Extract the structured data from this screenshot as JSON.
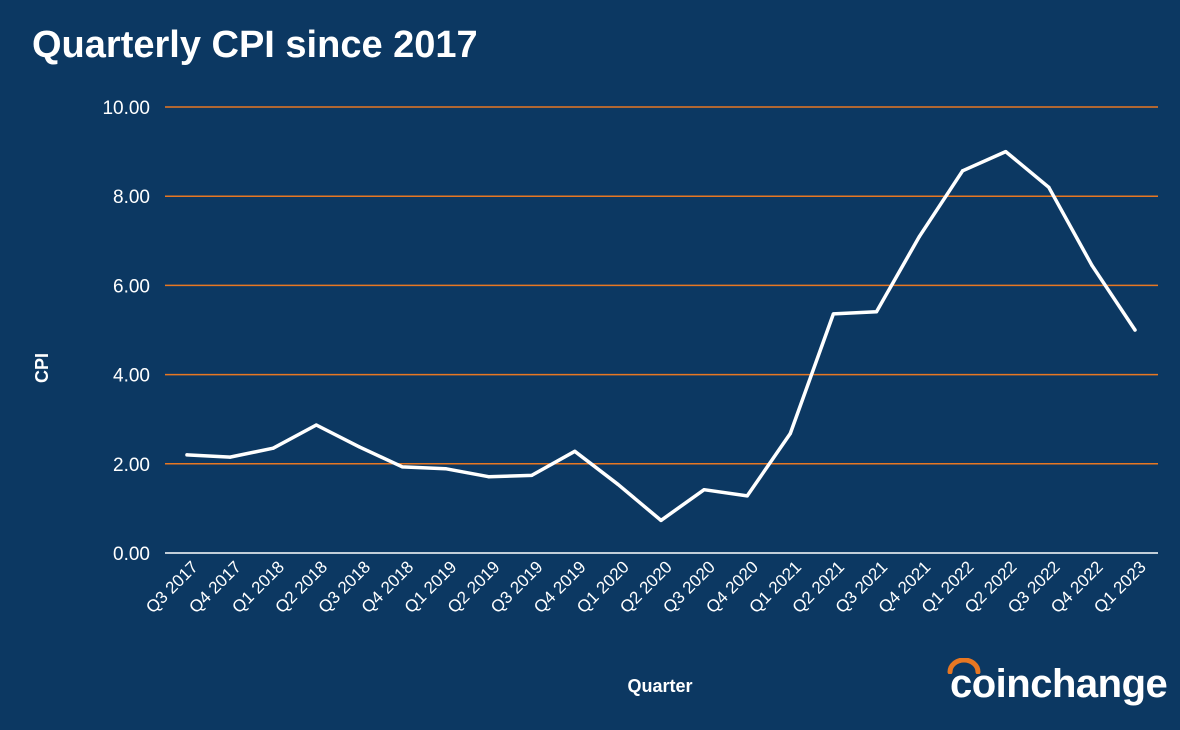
{
  "title": "Quarterly CPI since 2017",
  "colors": {
    "background": "#0c3862",
    "gridline": "#e87722",
    "line": "#ffffff",
    "text": "#ffffff",
    "logo_accent": "#e87722"
  },
  "logo": {
    "text": "coinchange"
  },
  "chart_data": {
    "type": "line",
    "title": "Quarterly CPI since 2017",
    "xlabel": "Quarter",
    "ylabel": "CPI",
    "ylim": [
      0,
      10
    ],
    "yticks": [
      "0.00",
      "2.00",
      "4.00",
      "6.00",
      "8.00",
      "10.00"
    ],
    "grid": true,
    "categories": [
      "Q3 2017",
      "Q4 2017",
      "Q1 2018",
      "Q2 2018",
      "Q3 2018",
      "Q4 2018",
      "Q1 2019",
      "Q2 2019",
      "Q3 2019",
      "Q4 2019",
      "Q1 2020",
      "Q2 2020",
      "Q3 2020",
      "Q4 2020",
      "Q1 2021",
      "Q2 2021",
      "Q3 2021",
      "Q4 2021",
      "Q1 2022",
      "Q2 2022",
      "Q3 2022",
      "Q4 2022",
      "Q1 2023"
    ],
    "series": [
      {
        "values": [
          2.2,
          2.15,
          2.35,
          2.87,
          2.38,
          1.93,
          1.89,
          1.71,
          1.74,
          2.28,
          1.54,
          0.73,
          1.42,
          1.28,
          2.68,
          5.36,
          5.41,
          7.1,
          8.57,
          9.0,
          8.2,
          6.45,
          5.0
        ]
      }
    ]
  }
}
